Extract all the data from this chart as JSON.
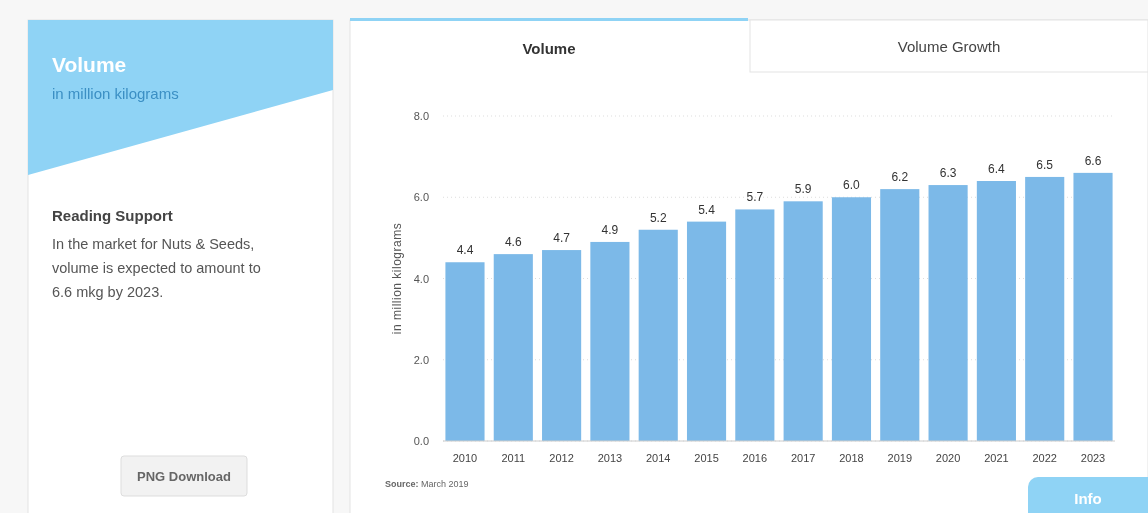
{
  "chart_data": {
    "type": "bar",
    "title": "Volume",
    "subtitle": "in million kilograms",
    "ylabel": "in million kilograms",
    "categories": [
      "2010",
      "2011",
      "2012",
      "2013",
      "2014",
      "2015",
      "2016",
      "2017",
      "2018",
      "2019",
      "2020",
      "2021",
      "2022",
      "2023"
    ],
    "values": [
      4.4,
      4.6,
      4.7,
      4.9,
      5.2,
      5.4,
      5.7,
      5.9,
      6.0,
      6.2,
      6.3,
      6.4,
      6.5,
      6.6
    ],
    "value_labels": [
      "4.4",
      "4.6",
      "4.7",
      "4.9",
      "5.2",
      "5.4",
      "5.7",
      "5.9",
      "6.0",
      "6.2",
      "6.3",
      "6.4",
      "6.5",
      "6.6"
    ],
    "color": "#7cb9e8",
    "ylim": [
      0,
      8
    ],
    "yticks": [
      {
        "value": 0,
        "label": "0.0"
      },
      {
        "value": 2,
        "label": "2.0"
      },
      {
        "value": 4,
        "label": "4.0"
      },
      {
        "value": 6,
        "label": "6.0"
      },
      {
        "value": 8,
        "label": "8.0"
      }
    ],
    "grid": "y",
    "annotations": [
      "Reading Support",
      "In the market for Nuts & Seeds, volume is expected to amount to 6.6 mkg by 2023.",
      "PNG Download",
      "Volume",
      "Volume Growth",
      "Source: March 2019",
      "Info"
    ]
  }
}
